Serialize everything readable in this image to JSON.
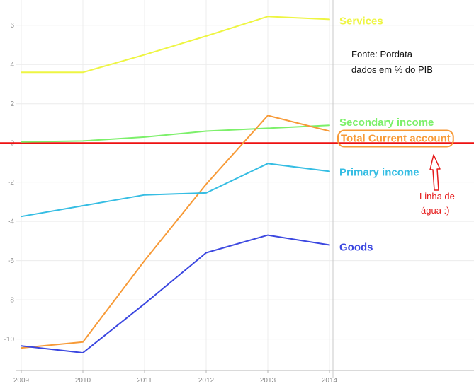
{
  "chart_data": {
    "type": "line",
    "x": [
      2009,
      2010,
      2011,
      2012,
      2013,
      2014
    ],
    "ylim": [
      -11.6,
      7.0
    ],
    "yticks": [
      -10,
      -8,
      -6,
      -4,
      -2,
      0,
      2,
      4,
      6
    ],
    "grid": true,
    "series": [
      {
        "name": "Services",
        "color": "#eef542",
        "values": [
          3.6,
          3.6,
          4.5,
          5.45,
          6.45,
          6.3
        ]
      },
      {
        "name": "Secondary income",
        "color": "#7cf06a",
        "values": [
          0.05,
          0.1,
          0.3,
          0.6,
          0.75,
          0.9
        ]
      },
      {
        "name": "Total Current account",
        "color": "#f79a37",
        "values": [
          -10.45,
          -10.15,
          -6.0,
          -2.1,
          1.4,
          0.6
        ]
      },
      {
        "name": "Primary income",
        "color": "#35bde3",
        "values": [
          -3.75,
          -3.2,
          -2.65,
          -2.55,
          -1.05,
          -1.45
        ]
      },
      {
        "name": "Goods",
        "color": "#3b47e0",
        "values": [
          -10.35,
          -10.7,
          -8.2,
          -5.6,
          -4.7,
          -5.2
        ]
      }
    ],
    "zero_line_color": "#ee1111",
    "annotations": {
      "source_line1": "Fonte: Pordata",
      "source_line2": "dados em % do PIB",
      "callout_line1": "Linha de",
      "callout_line2": "água :)",
      "callout_color": "#e51b1b"
    }
  }
}
